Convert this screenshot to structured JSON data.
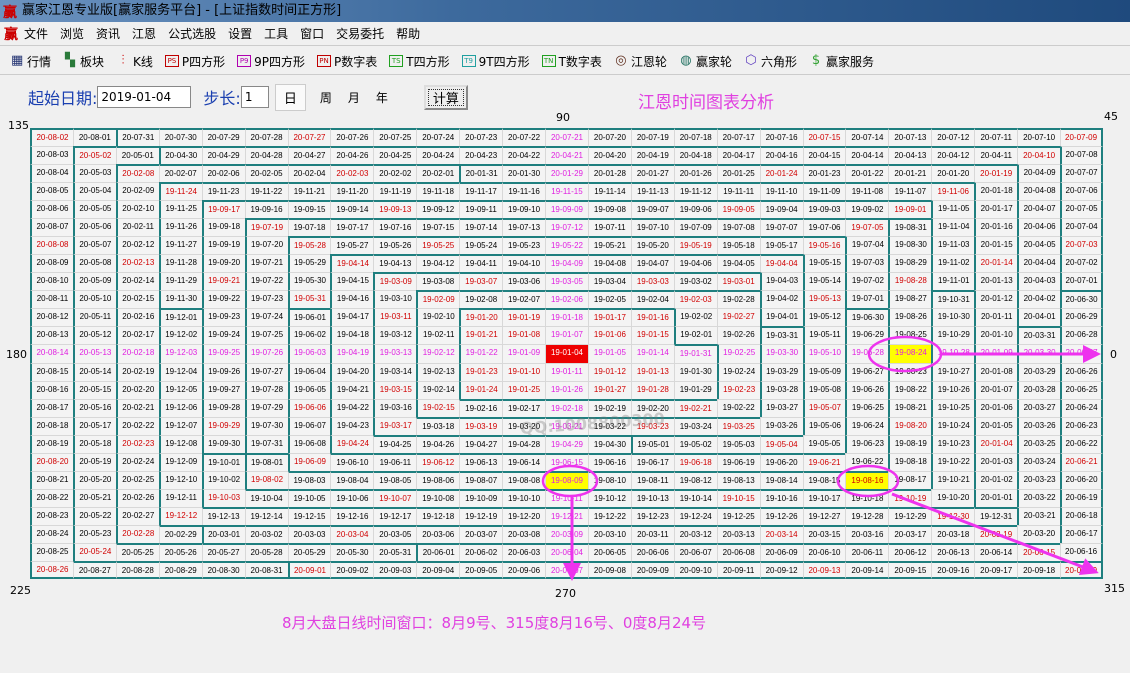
{
  "window": {
    "title": "赢家江恩专业版[赢家服务平台] - [上证指数时间正方形]",
    "logo": "赢"
  },
  "menu": [
    "文件",
    "浏览",
    "资讯",
    "江恩",
    "公式选股",
    "设置",
    "工具",
    "窗口",
    "交易委托",
    "帮助"
  ],
  "toolbar": [
    {
      "label": "行情",
      "icon": "table-icon",
      "badge": "▦",
      "color": "#203070"
    },
    {
      "label": "板块",
      "icon": "blocks-icon",
      "badge": "▚",
      "color": "#2a7a3a"
    },
    {
      "label": "K线",
      "icon": "candlestick-icon",
      "badge": "⫶",
      "color": "#d02020"
    },
    {
      "label": "P四方形",
      "icon": "ps-icon",
      "badge": "PS",
      "color": "#c00000"
    },
    {
      "label": "9P四方形",
      "icon": "p9-icon",
      "badge": "P9",
      "color": "#b000b0"
    },
    {
      "label": "P数字表",
      "icon": "pn-icon",
      "badge": "PN",
      "color": "#c00000"
    },
    {
      "label": "T四方形",
      "icon": "ts-icon",
      "badge": "TS",
      "color": "#20a020"
    },
    {
      "label": "9T四方形",
      "icon": "t9-icon",
      "badge": "T9",
      "color": "#20a0a0"
    },
    {
      "label": "T数字表",
      "icon": "tn-icon",
      "badge": "TN",
      "color": "#20a020"
    },
    {
      "label": "江恩轮",
      "icon": "gann-wheel-icon",
      "badge": "◎",
      "color": "#603020"
    },
    {
      "label": "赢家轮",
      "icon": "winner-wheel-icon",
      "badge": "◍",
      "color": "#207060"
    },
    {
      "label": "六角形",
      "icon": "hexagon-icon",
      "badge": "⬡",
      "color": "#6040c0"
    },
    {
      "label": "赢家服务",
      "icon": "dollar-icon",
      "badge": "$",
      "color": "#30a030"
    }
  ],
  "controls": {
    "start_label": "起始日期:",
    "start_date": "2019-01-04",
    "step_label": "步长:",
    "step": "1",
    "units": [
      "日",
      "周",
      "月",
      "年"
    ],
    "selected_unit": "日",
    "calc_label": "计算"
  },
  "heading": "江恩时间图表分析",
  "angles": {
    "a135": "135",
    "a90": "90",
    "a45": "45",
    "a180": "180",
    "a0": "0",
    "a225": "225",
    "a270": "270",
    "a315": "315"
  },
  "grid": {
    "size": 25,
    "center_date": "19-01-04",
    "highlighted": [
      "19-08-24",
      "19-08-09",
      "19-08-16"
    ]
  },
  "colors": {
    "cross": "#e020e0",
    "angle": "#d00000",
    "center_bg": "#ee0000",
    "highlight_bg": "#ffff00",
    "month_border": "#1f7f7f",
    "annotation": "#ee33ee"
  },
  "watermark": "QQ:1008800300",
  "note": "8月大盘日线时间窗口：8月9号、315度8月16号、0度8月24号"
}
